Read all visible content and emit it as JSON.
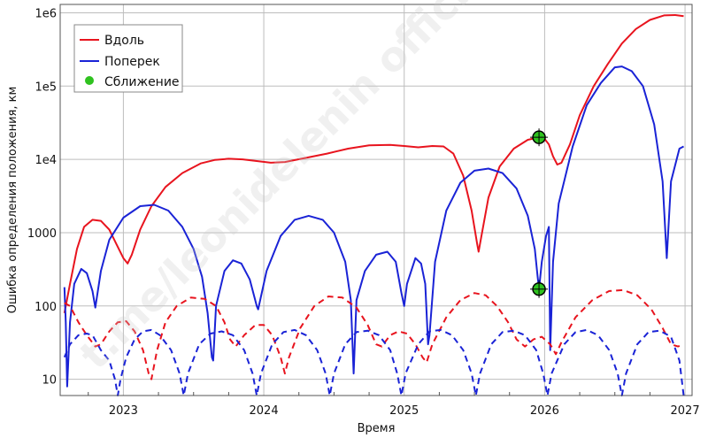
{
  "chart_data": {
    "type": "line",
    "xlabel": "Время",
    "ylabel": "Ошибка определения положения, км",
    "yscale": "log",
    "xlim": [
      2022.55,
      2027.05
    ],
    "ylim": [
      6,
      1300000
    ],
    "grid": true,
    "legend_position": "top-left",
    "xticks": [
      2023,
      2024,
      2025,
      2026,
      2027
    ],
    "xtick_labels": [
      "2023",
      "2024",
      "2025",
      "2026",
      "2027"
    ],
    "yticks": [
      10,
      100,
      1000,
      10000,
      100000,
      1000000
    ],
    "ytick_labels": [
      "10",
      "100",
      "1000",
      "1e4",
      "1e5",
      "1e6"
    ],
    "watermark": "t.me/leonidelenin official",
    "legend": [
      {
        "label": "Вдоль",
        "color": "#e8141e",
        "style": "line"
      },
      {
        "label": "Поперек",
        "color": "#1a23d6",
        "style": "line"
      },
      {
        "label": "Сближение",
        "color": "#2fc21f",
        "style": "marker"
      }
    ],
    "series": [
      {
        "name": "Вдоль",
        "color": "#e8141e",
        "dash": false,
        "points": [
          [
            2022.58,
            80
          ],
          [
            2022.62,
            200
          ],
          [
            2022.67,
            600
          ],
          [
            2022.72,
            1200
          ],
          [
            2022.78,
            1500
          ],
          [
            2022.84,
            1450
          ],
          [
            2022.9,
            1100
          ],
          [
            2022.95,
            700
          ],
          [
            2023.0,
            450
          ],
          [
            2023.03,
            380
          ],
          [
            2023.06,
            500
          ],
          [
            2023.12,
            1100
          ],
          [
            2023.2,
            2300
          ],
          [
            2023.3,
            4200
          ],
          [
            2023.42,
            6500
          ],
          [
            2023.55,
            8800
          ],
          [
            2023.65,
            9800
          ],
          [
            2023.75,
            10200
          ],
          [
            2023.85,
            10000
          ],
          [
            2023.95,
            9500
          ],
          [
            2024.05,
            9000
          ],
          [
            2024.15,
            9200
          ],
          [
            2024.3,
            10500
          ],
          [
            2024.45,
            12000
          ],
          [
            2024.6,
            14000
          ],
          [
            2024.75,
            15500
          ],
          [
            2024.9,
            15800
          ],
          [
            2025.0,
            15200
          ],
          [
            2025.1,
            14600
          ],
          [
            2025.2,
            15200
          ],
          [
            2025.28,
            15000
          ],
          [
            2025.35,
            12000
          ],
          [
            2025.42,
            6000
          ],
          [
            2025.48,
            2000
          ],
          [
            2025.52,
            700
          ],
          [
            2025.53,
            550
          ],
          [
            2025.55,
            900
          ],
          [
            2025.6,
            3000
          ],
          [
            2025.68,
            8000
          ],
          [
            2025.78,
            14000
          ],
          [
            2025.88,
            18500
          ],
          [
            2025.96,
            20000
          ],
          [
            2026.0,
            19000
          ],
          [
            2026.03,
            16000
          ],
          [
            2026.06,
            11000
          ],
          [
            2026.09,
            8500
          ],
          [
            2026.12,
            9000
          ],
          [
            2026.18,
            16000
          ],
          [
            2026.25,
            40000
          ],
          [
            2026.35,
            100000
          ],
          [
            2026.45,
            200000
          ],
          [
            2026.55,
            380000
          ],
          [
            2026.65,
            600000
          ],
          [
            2026.75,
            800000
          ],
          [
            2026.85,
            920000
          ],
          [
            2026.93,
            930000
          ],
          [
            2026.99,
            900000
          ]
        ]
      },
      {
        "name": "Поперек",
        "color": "#1a23d6",
        "dash": false,
        "points": [
          [
            2022.58,
            180
          ],
          [
            2022.59,
            60
          ],
          [
            2022.6,
            8
          ],
          [
            2022.62,
            60
          ],
          [
            2022.65,
            200
          ],
          [
            2022.7,
            320
          ],
          [
            2022.74,
            280
          ],
          [
            2022.78,
            160
          ],
          [
            2022.8,
            95
          ],
          [
            2022.84,
            300
          ],
          [
            2022.9,
            800
          ],
          [
            2023.0,
            1600
          ],
          [
            2023.12,
            2300
          ],
          [
            2023.22,
            2400
          ],
          [
            2023.32,
            2000
          ],
          [
            2023.42,
            1200
          ],
          [
            2023.5,
            600
          ],
          [
            2023.56,
            250
          ],
          [
            2023.6,
            80
          ],
          [
            2023.63,
            20
          ],
          [
            2023.64,
            18
          ],
          [
            2023.66,
            100
          ],
          [
            2023.72,
            300
          ],
          [
            2023.78,
            420
          ],
          [
            2023.84,
            380
          ],
          [
            2023.9,
            230
          ],
          [
            2023.95,
            100
          ],
          [
            2023.96,
            90
          ],
          [
            2024.02,
            300
          ],
          [
            2024.12,
            900
          ],
          [
            2024.22,
            1500
          ],
          [
            2024.32,
            1700
          ],
          [
            2024.42,
            1500
          ],
          [
            2024.5,
            1000
          ],
          [
            2024.58,
            400
          ],
          [
            2024.62,
            120
          ],
          [
            2024.64,
            12
          ],
          [
            2024.66,
            120
          ],
          [
            2024.72,
            300
          ],
          [
            2024.8,
            500
          ],
          [
            2024.88,
            550
          ],
          [
            2024.94,
            400
          ],
          [
            2024.98,
            150
          ],
          [
            2025.0,
            100
          ],
          [
            2025.02,
            200
          ],
          [
            2025.08,
            450
          ],
          [
            2025.12,
            380
          ],
          [
            2025.15,
            200
          ],
          [
            2025.17,
            30
          ],
          [
            2025.18,
            40
          ],
          [
            2025.22,
            400
          ],
          [
            2025.3,
            2000
          ],
          [
            2025.4,
            4800
          ],
          [
            2025.5,
            7000
          ],
          [
            2025.6,
            7500
          ],
          [
            2025.7,
            6500
          ],
          [
            2025.8,
            4000
          ],
          [
            2025.88,
            1700
          ],
          [
            2025.93,
            600
          ],
          [
            2025.95,
            250
          ],
          [
            2025.96,
            170
          ],
          [
            2025.98,
            400
          ],
          [
            2026.01,
            900
          ],
          [
            2026.03,
            1200
          ],
          [
            2026.04,
            25
          ],
          [
            2026.06,
            400
          ],
          [
            2026.1,
            2500
          ],
          [
            2026.2,
            15000
          ],
          [
            2026.3,
            55000
          ],
          [
            2026.4,
            110000
          ],
          [
            2026.5,
            180000
          ],
          [
            2026.55,
            185000
          ],
          [
            2026.62,
            160000
          ],
          [
            2026.7,
            100000
          ],
          [
            2026.78,
            30000
          ],
          [
            2026.84,
            5000
          ],
          [
            2026.87,
            450
          ],
          [
            2026.9,
            5000
          ],
          [
            2026.96,
            14000
          ],
          [
            2026.99,
            15000
          ]
        ]
      },
      {
        "name": "Вдоль (пунктир)",
        "color": "#e8141e",
        "dash": true,
        "points": [
          [
            2022.58,
            110
          ],
          [
            2022.62,
            100
          ],
          [
            2022.68,
            60
          ],
          [
            2022.74,
            40
          ],
          [
            2022.8,
            28
          ],
          [
            2022.84,
            30
          ],
          [
            2022.9,
            45
          ],
          [
            2022.96,
            60
          ],
          [
            2023.02,
            62
          ],
          [
            2023.08,
            45
          ],
          [
            2023.14,
            25
          ],
          [
            2023.18,
            12
          ],
          [
            2023.2,
            10
          ],
          [
            2023.24,
            25
          ],
          [
            2023.3,
            60
          ],
          [
            2023.38,
            100
          ],
          [
            2023.48,
            130
          ],
          [
            2023.58,
            125
          ],
          [
            2023.66,
            100
          ],
          [
            2023.72,
            60
          ],
          [
            2023.76,
            35
          ],
          [
            2023.8,
            28
          ],
          [
            2023.86,
            40
          ],
          [
            2023.94,
            55
          ],
          [
            2024.0,
            55
          ],
          [
            2024.06,
            40
          ],
          [
            2024.12,
            20
          ],
          [
            2024.15,
            12
          ],
          [
            2024.18,
            20
          ],
          [
            2024.26,
            50
          ],
          [
            2024.36,
            100
          ],
          [
            2024.46,
            135
          ],
          [
            2024.56,
            130
          ],
          [
            2024.66,
            95
          ],
          [
            2024.74,
            55
          ],
          [
            2024.8,
            30
          ],
          [
            2024.84,
            28
          ],
          [
            2024.9,
            40
          ],
          [
            2024.96,
            45
          ],
          [
            2025.02,
            42
          ],
          [
            2025.08,
            30
          ],
          [
            2025.13,
            20
          ],
          [
            2025.16,
            17
          ],
          [
            2025.2,
            30
          ],
          [
            2025.3,
            70
          ],
          [
            2025.4,
            120
          ],
          [
            2025.5,
            150
          ],
          [
            2025.58,
            140
          ],
          [
            2025.66,
            100
          ],
          [
            2025.74,
            60
          ],
          [
            2025.8,
            35
          ],
          [
            2025.86,
            28
          ],
          [
            2025.92,
            35
          ],
          [
            2025.98,
            38
          ],
          [
            2026.04,
            30
          ],
          [
            2026.08,
            22
          ],
          [
            2026.12,
            32
          ],
          [
            2026.22,
            70
          ],
          [
            2026.34,
            120
          ],
          [
            2026.46,
            160
          ],
          [
            2026.56,
            165
          ],
          [
            2026.66,
            140
          ],
          [
            2026.76,
            90
          ],
          [
            2026.84,
            50
          ],
          [
            2026.9,
            30
          ],
          [
            2026.95,
            28
          ],
          [
            2026.99,
            30
          ]
        ]
      },
      {
        "name": "Поперек (пунктир)",
        "color": "#1a23d6",
        "dash": true,
        "points": [
          [
            2022.58,
            20
          ],
          [
            2022.62,
            30
          ],
          [
            2022.68,
            40
          ],
          [
            2022.74,
            42
          ],
          [
            2022.78,
            40
          ],
          [
            2022.84,
            25
          ],
          [
            2022.9,
            18
          ],
          [
            2022.94,
            10
          ],
          [
            2022.96,
            6
          ],
          [
            2022.98,
            10
          ],
          [
            2023.02,
            20
          ],
          [
            2023.08,
            35
          ],
          [
            2023.14,
            45
          ],
          [
            2023.2,
            47
          ],
          [
            2023.26,
            40
          ],
          [
            2023.34,
            25
          ],
          [
            2023.4,
            12
          ],
          [
            2023.43,
            6
          ],
          [
            2023.46,
            12
          ],
          [
            2023.54,
            30
          ],
          [
            2023.62,
            42
          ],
          [
            2023.7,
            45
          ],
          [
            2023.78,
            40
          ],
          [
            2023.86,
            25
          ],
          [
            2023.92,
            12
          ],
          [
            2023.95,
            6
          ],
          [
            2023.98,
            12
          ],
          [
            2024.06,
            30
          ],
          [
            2024.14,
            44
          ],
          [
            2024.22,
            47
          ],
          [
            2024.3,
            40
          ],
          [
            2024.38,
            25
          ],
          [
            2024.44,
            12
          ],
          [
            2024.47,
            6
          ],
          [
            2024.5,
            12
          ],
          [
            2024.58,
            30
          ],
          [
            2024.66,
            44
          ],
          [
            2024.74,
            46
          ],
          [
            2024.82,
            40
          ],
          [
            2024.9,
            25
          ],
          [
            2024.95,
            12
          ],
          [
            2024.98,
            6
          ],
          [
            2025.01,
            12
          ],
          [
            2025.1,
            30
          ],
          [
            2025.18,
            45
          ],
          [
            2025.26,
            47
          ],
          [
            2025.34,
            40
          ],
          [
            2025.42,
            25
          ],
          [
            2025.48,
            12
          ],
          [
            2025.51,
            6
          ],
          [
            2025.54,
            12
          ],
          [
            2025.62,
            30
          ],
          [
            2025.7,
            44
          ],
          [
            2025.78,
            46
          ],
          [
            2025.86,
            40
          ],
          [
            2025.94,
            25
          ],
          [
            2025.99,
            12
          ],
          [
            2026.02,
            6
          ],
          [
            2026.05,
            12
          ],
          [
            2026.14,
            30
          ],
          [
            2026.22,
            44
          ],
          [
            2026.3,
            47
          ],
          [
            2026.38,
            40
          ],
          [
            2026.46,
            25
          ],
          [
            2026.52,
            12
          ],
          [
            2026.55,
            6
          ],
          [
            2026.58,
            12
          ],
          [
            2026.66,
            30
          ],
          [
            2026.74,
            44
          ],
          [
            2026.82,
            46
          ],
          [
            2026.9,
            38
          ],
          [
            2026.96,
            18
          ],
          [
            2026.99,
            6
          ]
        ]
      }
    ],
    "markers": [
      {
        "label": "Сближение",
        "x": 2025.96,
        "y": 20000,
        "color": "#2fc21f"
      },
      {
        "label": "Сближение",
        "x": 2025.96,
        "y": 170,
        "color": "#2fc21f"
      }
    ]
  }
}
